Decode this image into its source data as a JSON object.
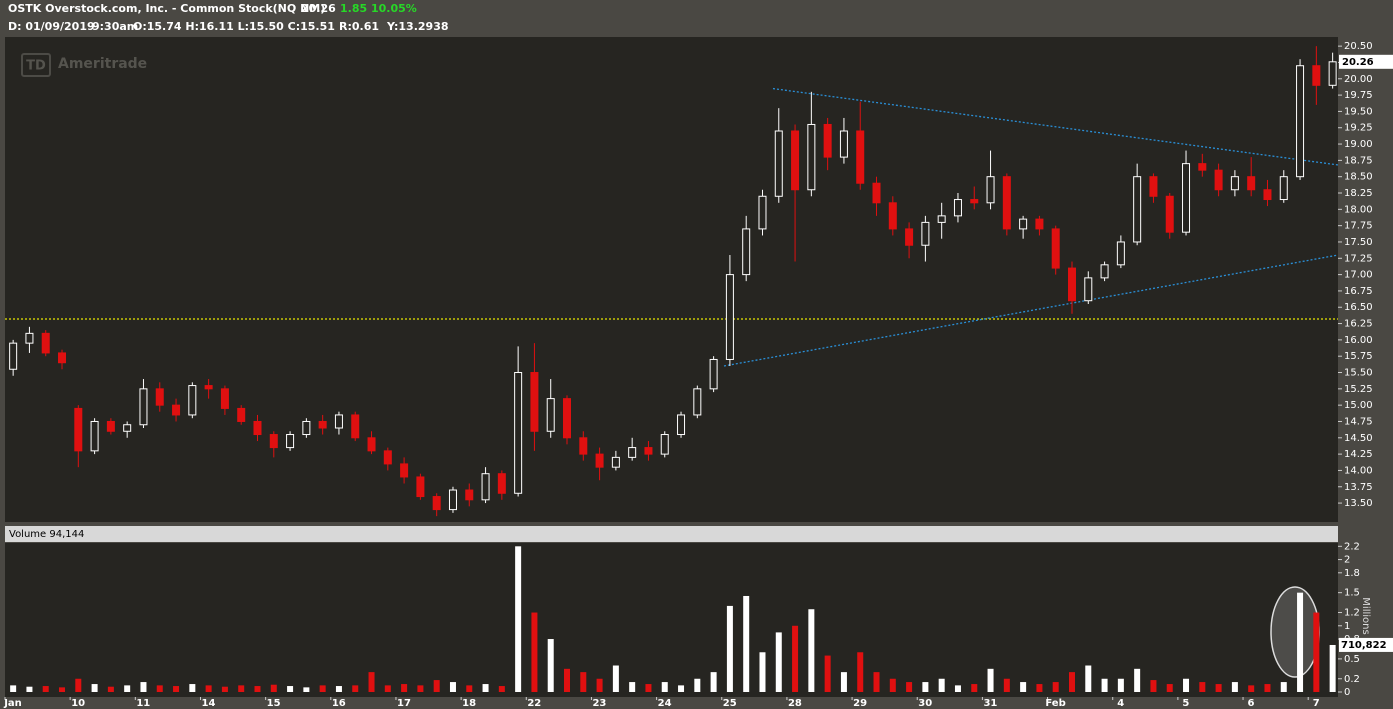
{
  "header": {
    "symbol": "OSTK Overstock.com, Inc. - Common Stock(NQ NM)",
    "last": 20.26,
    "change": 1.85,
    "change_pct": "10.05%",
    "date": "D: 01/09/2019",
    "time": "9:30am",
    "ohlc": "O:15.74 H:16.11 L:15.50 C:15.51",
    "range": "R:0.61",
    "y": "Y:13.2938"
  },
  "watermark": {
    "logo": "TD",
    "name": "Ameritrade"
  },
  "chart_data": {
    "type": "candlestick",
    "categories": [
      "Jan",
      null,
      null,
      null,
      "10",
      null,
      null,
      null,
      "11",
      null,
      null,
      null,
      "14",
      null,
      null,
      null,
      "15",
      null,
      null,
      null,
      "16",
      null,
      null,
      null,
      "17",
      null,
      null,
      null,
      "18",
      null,
      null,
      null,
      "22",
      null,
      null,
      null,
      "23",
      null,
      null,
      null,
      "24",
      null,
      null,
      null,
      "25",
      null,
      null,
      null,
      "28",
      null,
      null,
      null,
      "29",
      null,
      null,
      null,
      "30",
      null,
      null,
      null,
      "31",
      null,
      null,
      null,
      "Feb",
      null,
      null,
      null,
      "4",
      null,
      null,
      null,
      "5",
      null,
      null,
      null,
      "6",
      null,
      null,
      null,
      "7",
      null
    ],
    "open": [
      15.55,
      15.95,
      16.1,
      15.8,
      14.95,
      14.3,
      14.75,
      14.6,
      14.7,
      15.25,
      15.0,
      14.85,
      15.3,
      15.25,
      14.95,
      14.75,
      14.55,
      14.35,
      14.55,
      14.75,
      14.65,
      14.85,
      14.5,
      14.3,
      14.1,
      13.9,
      13.6,
      13.4,
      13.7,
      13.55,
      13.95,
      13.65,
      15.5,
      14.6,
      15.1,
      14.5,
      14.25,
      14.05,
      14.2,
      14.35,
      14.25,
      14.55,
      14.85,
      15.25,
      15.7,
      17.0,
      17.7,
      18.2,
      19.2,
      18.3,
      19.3,
      18.8,
      19.2,
      18.4,
      18.1,
      17.7,
      17.45,
      17.8,
      17.9,
      18.15,
      18.1,
      18.5,
      17.7,
      17.85,
      17.7,
      17.1,
      16.6,
      16.95,
      17.15,
      17.5,
      18.5,
      18.2,
      17.65,
      18.7,
      18.6,
      18.3,
      18.5,
      18.3,
      18.15,
      18.5,
      20.2,
      19.9
    ],
    "high": [
      16.0,
      16.2,
      16.15,
      15.85,
      15.0,
      14.8,
      14.8,
      14.75,
      15.4,
      15.35,
      15.1,
      15.35,
      15.4,
      15.3,
      15.0,
      14.85,
      14.6,
      14.6,
      14.8,
      14.85,
      14.9,
      14.9,
      14.6,
      14.35,
      14.2,
      13.95,
      13.65,
      13.75,
      13.8,
      14.05,
      14.0,
      15.9,
      15.95,
      15.4,
      15.15,
      14.6,
      14.35,
      14.3,
      14.5,
      14.45,
      14.6,
      14.9,
      15.3,
      15.75,
      17.3,
      17.9,
      18.3,
      19.55,
      19.3,
      19.8,
      19.4,
      19.4,
      19.65,
      18.5,
      18.2,
      17.8,
      17.9,
      18.1,
      18.25,
      18.35,
      18.9,
      18.55,
      17.9,
      17.9,
      17.75,
      17.2,
      17.05,
      17.2,
      17.6,
      18.7,
      18.55,
      18.25,
      18.9,
      18.85,
      18.7,
      18.6,
      18.8,
      18.45,
      18.6,
      20.3,
      20.5,
      20.4
    ],
    "low": [
      15.45,
      15.8,
      15.75,
      15.55,
      14.05,
      14.25,
      14.55,
      14.5,
      14.65,
      14.9,
      14.75,
      14.8,
      15.1,
      14.85,
      14.7,
      14.45,
      14.2,
      14.3,
      14.5,
      14.55,
      14.55,
      14.45,
      14.25,
      14.0,
      13.8,
      13.55,
      13.3,
      13.35,
      13.45,
      13.5,
      13.55,
      13.6,
      14.3,
      14.5,
      14.4,
      14.15,
      13.85,
      14.0,
      14.15,
      14.15,
      14.2,
      14.5,
      14.8,
      15.2,
      15.6,
      16.9,
      17.6,
      18.1,
      17.2,
      18.2,
      18.6,
      18.7,
      18.3,
      17.9,
      17.6,
      17.25,
      17.2,
      17.55,
      17.8,
      18.0,
      18.0,
      17.6,
      17.55,
      17.6,
      17.0,
      16.4,
      16.55,
      16.9,
      17.1,
      17.45,
      18.1,
      17.55,
      17.6,
      18.5,
      18.2,
      18.2,
      18.2,
      18.05,
      18.1,
      18.45,
      19.6,
      19.85
    ],
    "close": [
      15.95,
      16.1,
      15.8,
      15.65,
      14.3,
      14.75,
      14.6,
      14.7,
      15.25,
      15.0,
      14.85,
      15.3,
      15.25,
      14.95,
      14.75,
      14.55,
      14.35,
      14.55,
      14.75,
      14.65,
      14.85,
      14.5,
      14.3,
      14.1,
      13.9,
      13.6,
      13.4,
      13.7,
      13.55,
      13.95,
      13.65,
      15.5,
      14.6,
      15.1,
      14.5,
      14.25,
      14.05,
      14.2,
      14.35,
      14.25,
      14.55,
      14.85,
      15.25,
      15.7,
      17.0,
      17.7,
      18.2,
      19.2,
      18.3,
      19.3,
      18.8,
      19.2,
      18.4,
      18.1,
      17.7,
      17.45,
      17.8,
      17.9,
      18.15,
      18.1,
      18.5,
      17.7,
      17.85,
      17.7,
      17.1,
      16.6,
      16.95,
      17.15,
      17.5,
      18.5,
      18.2,
      17.65,
      18.7,
      18.6,
      18.3,
      18.5,
      18.3,
      18.15,
      18.5,
      20.2,
      19.9,
      20.26
    ],
    "volume": [
      0.1,
      0.08,
      0.09,
      0.07,
      0.2,
      0.12,
      0.08,
      0.1,
      0.15,
      0.1,
      0.09,
      0.12,
      0.1,
      0.08,
      0.1,
      0.09,
      0.11,
      0.09,
      0.07,
      0.1,
      0.09,
      0.1,
      0.3,
      0.1,
      0.12,
      0.1,
      0.18,
      0.15,
      0.1,
      0.12,
      0.09,
      2.2,
      1.2,
      0.8,
      0.35,
      0.3,
      0.2,
      0.4,
      0.15,
      0.12,
      0.15,
      0.1,
      0.2,
      0.3,
      1.3,
      1.45,
      0.6,
      0.9,
      1.0,
      1.25,
      0.55,
      0.3,
      0.6,
      0.3,
      0.2,
      0.15,
      0.15,
      0.2,
      0.1,
      0.12,
      0.35,
      0.2,
      0.15,
      0.12,
      0.15,
      0.3,
      0.4,
      0.2,
      0.2,
      0.35,
      0.18,
      0.12,
      0.2,
      0.15,
      0.12,
      0.15,
      0.1,
      0.12,
      0.15,
      1.5,
      1.2,
      0.71
    ],
    "ylim": [
      13.21,
      20.64
    ],
    "yticks": [
      {
        "value": 13.5,
        "label": "13.50"
      },
      13.75,
      {
        "value": 14,
        "label": "14.00"
      },
      14.25,
      {
        "value": 14.5,
        "label": "14.50"
      },
      14.75,
      {
        "value": 15,
        "label": "15.00"
      },
      15.25,
      {
        "value": 15.5,
        "label": "15.50"
      },
      15.75,
      {
        "value": 16,
        "label": "16.00"
      },
      16.25,
      {
        "value": 16.5,
        "label": "16.50"
      },
      16.75,
      {
        "value": 17,
        "label": "17.00"
      },
      17.25,
      {
        "value": 17.5,
        "label": "17.50"
      },
      17.75,
      {
        "value": 18,
        "label": "18.00"
      },
      18.25,
      {
        "value": 18.5,
        "label": "18.50"
      },
      18.75,
      {
        "value": 19,
        "label": "19.00"
      },
      19.25,
      {
        "value": 19.5,
        "label": "19.50"
      },
      19.75,
      {
        "value": 20,
        "label": "20.00"
      },
      20.25,
      {
        "value": 20.5,
        "label": "20.50"
      }
    ],
    "y2lim": [
      0,
      2.25
    ],
    "y2ticks": [
      0,
      0.2,
      0.5,
      0.8,
      1,
      1.2,
      1.5,
      1.8,
      2,
      2.2
    ],
    "y2_label": "Millions",
    "volume_title": "Volume 94,144",
    "volume_tag": {
      "value": 0.710822,
      "label": "710,822"
    },
    "level_line": {
      "value": 16.32,
      "color": "#e6e600"
    },
    "trendlines": [
      {
        "from": 19.85,
        "to": 18.68,
        "color": "#2a8fd6"
      },
      {
        "from": 15.6,
        "to": 17.3,
        "color": "#2a8fd6"
      }
    ],
    "up_color": "#ffffff",
    "down_color": "#e01010"
  }
}
